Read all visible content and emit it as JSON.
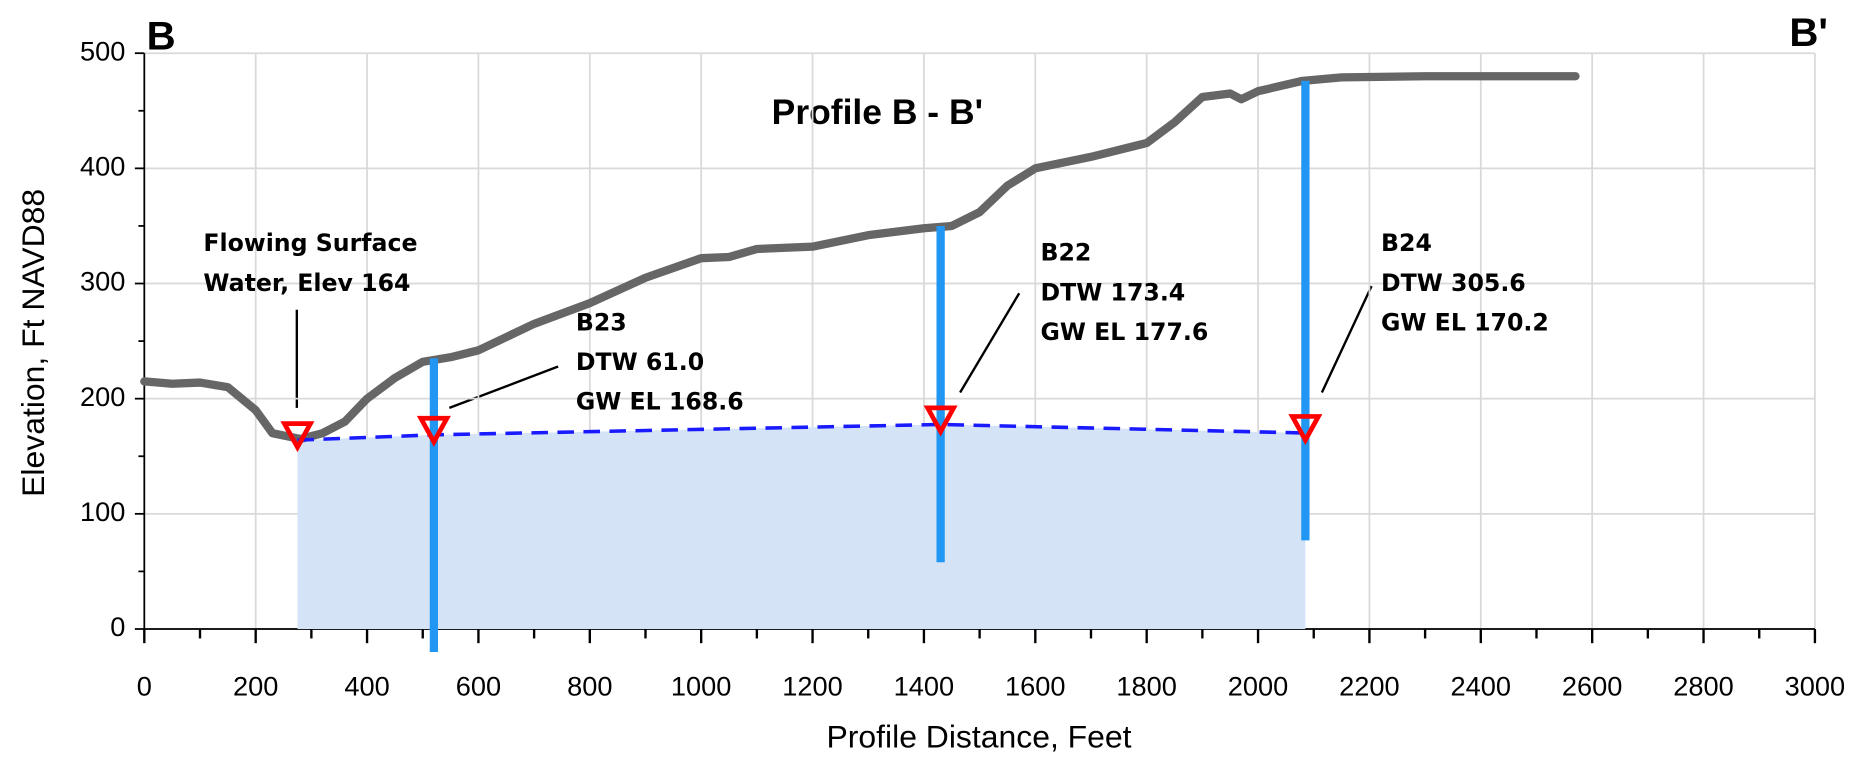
{
  "chart_data": {
    "type": "line",
    "title": "Profile B - B'",
    "corner_labels": [
      "B",
      "B'"
    ],
    "xlabel": "Profile Distance, Feet",
    "ylabel": "Elevation, Ft NAVD88",
    "xlim": [
      0,
      3000
    ],
    "xticks": [
      0,
      200,
      400,
      600,
      800,
      1000,
      1200,
      1400,
      1600,
      1800,
      2000,
      2200,
      2400,
      2600,
      2800,
      3000
    ],
    "ylim": [
      0,
      500
    ],
    "yticks": [
      0,
      100,
      200,
      300,
      400,
      500
    ],
    "grid": true,
    "profile": {
      "color": "#666666",
      "x": [
        0,
        50,
        100,
        150,
        200,
        230,
        280,
        320,
        360,
        400,
        450,
        500,
        550,
        600,
        700,
        800,
        900,
        1000,
        1050,
        1100,
        1200,
        1300,
        1400,
        1450,
        1500,
        1550,
        1600,
        1700,
        1800,
        1850,
        1900,
        1950,
        1970,
        2000,
        2080,
        2150,
        2300,
        2570
      ],
      "values": [
        215,
        213,
        214,
        210,
        190,
        170,
        165,
        170,
        180,
        200,
        218,
        232,
        236,
        242,
        265,
        283,
        305,
        322,
        323,
        330,
        332,
        342,
        348,
        350,
        362,
        385,
        400,
        410,
        422,
        440,
        462,
        465,
        460,
        467,
        476,
        479,
        480,
        480
      ]
    },
    "water_table": {
      "color": "#1a1aff",
      "marker_color": "#ff0000",
      "fill": "#d4e4f6",
      "x": [
        275,
        520,
        1430,
        2085
      ],
      "values": [
        164,
        168.6,
        177.6,
        170.2
      ]
    },
    "wells": {
      "color": "#2196f3",
      "x": [
        520,
        1430,
        2085
      ],
      "top": [
        235,
        350,
        476
      ],
      "bottom": [
        -20,
        58,
        77
      ]
    },
    "annotations": [
      {
        "lines": [
          "Flowing Surface",
          "Water, Elev 164"
        ]
      },
      {
        "lines": [
          "B23",
          "DTW  61.0",
          "GW EL 168.6"
        ]
      },
      {
        "lines": [
          "B22",
          "DTW 173.4",
          "GW EL 177.6"
        ]
      },
      {
        "lines": [
          "B24",
          "DTW 305.6",
          "GW EL 170.2"
        ]
      }
    ]
  }
}
